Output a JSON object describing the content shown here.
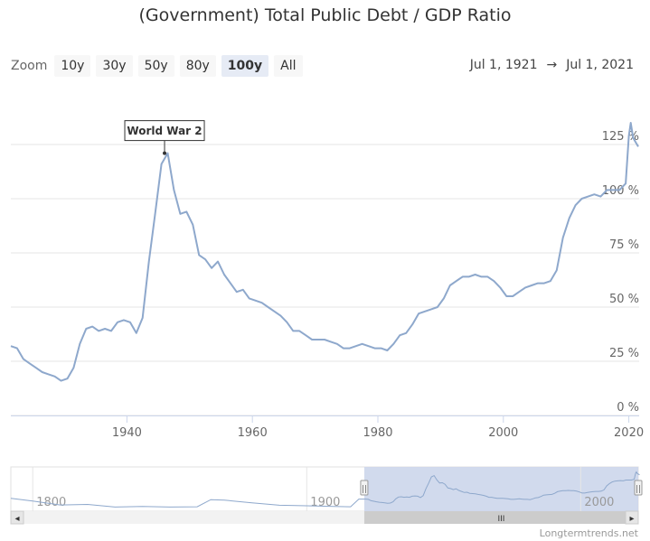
{
  "title": "(Government) Total Public Debt / GDP Ratio",
  "zoom": {
    "label": "Zoom",
    "buttons": [
      "10y",
      "30y",
      "50y",
      "80y",
      "100y",
      "All"
    ],
    "active": "100y"
  },
  "range": {
    "from": "Jul 1, 1921",
    "arrow": "→",
    "to": "Jul 1, 2021"
  },
  "navigator": {
    "ticks": [
      "1800",
      "1900",
      "2000"
    ],
    "selected_from_year": 1921,
    "selected_to_year": 2021,
    "full_from_year": 1792,
    "full_to_year": 2021,
    "handle_glyph": "||",
    "scroll_glyph": "III",
    "left_arrow": "◂",
    "right_arrow": "▸",
    "history": [
      [
        1792,
        35
      ],
      [
        1800,
        25
      ],
      [
        1810,
        10
      ],
      [
        1820,
        12
      ],
      [
        1830,
        2
      ],
      [
        1840,
        4
      ],
      [
        1850,
        2
      ],
      [
        1860,
        3
      ],
      [
        1865,
        30
      ],
      [
        1870,
        28
      ],
      [
        1880,
        18
      ],
      [
        1890,
        9
      ],
      [
        1900,
        7
      ],
      [
        1910,
        4
      ],
      [
        1916,
        3
      ],
      [
        1919,
        32
      ],
      [
        1921,
        32
      ]
    ]
  },
  "credit": "Longtermtrends.net",
  "colors": {
    "line": "#8ea8cc",
    "navigator_fill": "#ccd6eb",
    "scrollbar": "#cccccc"
  },
  "chart_data": {
    "type": "line",
    "title": "(Government) Total Public Debt / GDP Ratio",
    "xlabel": "",
    "ylabel": "",
    "xlim": [
      1921.5,
      2021.5
    ],
    "ylim": [
      0,
      135
    ],
    "x_ticks": [
      1940,
      1960,
      1980,
      2000,
      2020
    ],
    "y_ticks": [
      0,
      25,
      50,
      75,
      100,
      125
    ],
    "y_tick_labels": [
      "0 %",
      "25 %",
      "50 %",
      "75 %",
      "100 %",
      "125 %"
    ],
    "annotation": {
      "text": "World War 2",
      "x": 1946,
      "y": 121
    },
    "series": [
      {
        "values": [
          [
            1921.5,
            32
          ],
          [
            1922.5,
            31
          ],
          [
            1923.5,
            26
          ],
          [
            1924.5,
            24
          ],
          [
            1925.5,
            22
          ],
          [
            1926.5,
            20
          ],
          [
            1927.5,
            19
          ],
          [
            1928.5,
            18
          ],
          [
            1929.5,
            16
          ],
          [
            1930.5,
            17
          ],
          [
            1931.5,
            22
          ],
          [
            1932.5,
            33
          ],
          [
            1933.5,
            40
          ],
          [
            1934.5,
            41
          ],
          [
            1935.5,
            39
          ],
          [
            1936.5,
            40
          ],
          [
            1937.5,
            39
          ],
          [
            1938.5,
            43
          ],
          [
            1939.5,
            44
          ],
          [
            1940.5,
            43
          ],
          [
            1941.5,
            38
          ],
          [
            1942.5,
            45
          ],
          [
            1943.5,
            71
          ],
          [
            1944.5,
            93
          ],
          [
            1945.5,
            116
          ],
          [
            1946.5,
            121
          ],
          [
            1947.5,
            104
          ],
          [
            1948.5,
            93
          ],
          [
            1949.5,
            94
          ],
          [
            1950.5,
            88
          ],
          [
            1951.5,
            74
          ],
          [
            1952.5,
            72
          ],
          [
            1953.5,
            68
          ],
          [
            1954.5,
            71
          ],
          [
            1955.5,
            65
          ],
          [
            1956.5,
            61
          ],
          [
            1957.5,
            57
          ],
          [
            1958.5,
            58
          ],
          [
            1959.5,
            54
          ],
          [
            1960.5,
            53
          ],
          [
            1961.5,
            52
          ],
          [
            1962.5,
            50
          ],
          [
            1963.5,
            48
          ],
          [
            1964.5,
            46
          ],
          [
            1965.5,
            43
          ],
          [
            1966.5,
            39
          ],
          [
            1967.5,
            39
          ],
          [
            1968.5,
            37
          ],
          [
            1969.5,
            35
          ],
          [
            1970.5,
            35
          ],
          [
            1971.5,
            35
          ],
          [
            1972.5,
            34
          ],
          [
            1973.5,
            33
          ],
          [
            1974.5,
            31
          ],
          [
            1975.5,
            31
          ],
          [
            1976.5,
            32
          ],
          [
            1977.5,
            33
          ],
          [
            1978.5,
            32
          ],
          [
            1979.5,
            31
          ],
          [
            1980.5,
            31
          ],
          [
            1981.5,
            30
          ],
          [
            1982.5,
            33
          ],
          [
            1983.5,
            37
          ],
          [
            1984.5,
            38
          ],
          [
            1985.5,
            42
          ],
          [
            1986.5,
            47
          ],
          [
            1987.5,
            48
          ],
          [
            1988.5,
            49
          ],
          [
            1989.5,
            50
          ],
          [
            1990.5,
            54
          ],
          [
            1991.5,
            60
          ],
          [
            1992.5,
            62
          ],
          [
            1993.5,
            64
          ],
          [
            1994.5,
            64
          ],
          [
            1995.5,
            65
          ],
          [
            1996.5,
            64
          ],
          [
            1997.5,
            64
          ],
          [
            1998.5,
            62
          ],
          [
            1999.5,
            59
          ],
          [
            2000.5,
            55
          ],
          [
            2001.5,
            55
          ],
          [
            2002.5,
            57
          ],
          [
            2003.5,
            59
          ],
          [
            2004.5,
            60
          ],
          [
            2005.5,
            61
          ],
          [
            2006.5,
            61
          ],
          [
            2007.5,
            62
          ],
          [
            2008.5,
            67
          ],
          [
            2009.5,
            82
          ],
          [
            2010.5,
            91
          ],
          [
            2011.5,
            97
          ],
          [
            2012.5,
            100
          ],
          [
            2013.5,
            101
          ],
          [
            2014.5,
            102
          ],
          [
            2015.5,
            101
          ],
          [
            2016.5,
            104
          ],
          [
            2017.5,
            104
          ],
          [
            2018.5,
            104
          ],
          [
            2019.5,
            107
          ],
          [
            2020,
            129
          ],
          [
            2020.3,
            135
          ],
          [
            2020.7,
            128
          ],
          [
            2021.5,
            124
          ]
        ]
      }
    ]
  }
}
